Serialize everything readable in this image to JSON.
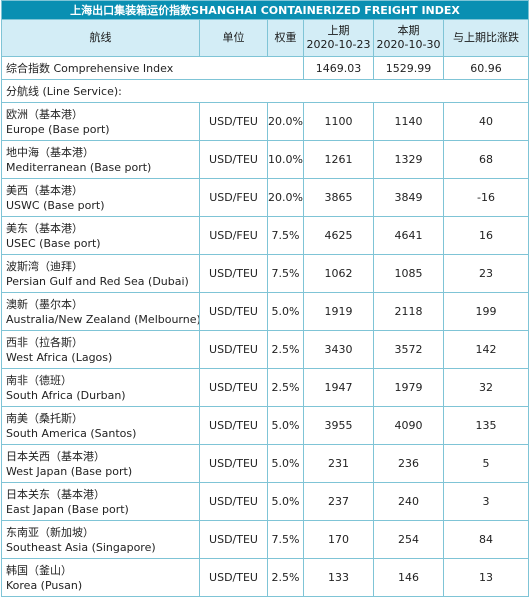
{
  "table": {
    "title": "上海出口集装箱运价指数SHANGHAI CONTAINERIZED FREIGHT INDEX",
    "headers": {
      "route": "航线",
      "unit": "单位",
      "weight": "权重",
      "prev_label": "上期",
      "prev_date": "2020-10-23",
      "curr_label": "本期",
      "curr_date": "2020-10-30",
      "change": "与上期比涨跌"
    },
    "composite": {
      "name": "综合指数 Comprehensive Index",
      "prev": "1469.03",
      "curr": "1529.99",
      "change": "60.96"
    },
    "section_label": "分航线 (Line Service):",
    "rows": [
      {
        "cn": "欧洲（基本港）",
        "en": "Europe (Base port)",
        "unit": "USD/TEU",
        "weight": "20.0%",
        "prev": "1100",
        "curr": "1140",
        "change": "40"
      },
      {
        "cn": "地中海（基本港）",
        "en": "Mediterranean (Base port)",
        "unit": "USD/TEU",
        "weight": "10.0%",
        "prev": "1261",
        "curr": "1329",
        "change": "68"
      },
      {
        "cn": "美西（基本港）",
        "en": "USWC (Base port)",
        "unit": "USD/FEU",
        "weight": "20.0%",
        "prev": "3865",
        "curr": "3849",
        "change": "-16"
      },
      {
        "cn": "美东（基本港）",
        "en": "USEC (Base port)",
        "unit": "USD/FEU",
        "weight": "7.5%",
        "prev": "4625",
        "curr": "4641",
        "change": "16"
      },
      {
        "cn": "波斯湾（迪拜）",
        "en": "Persian Gulf and Red Sea (Dubai)",
        "unit": "USD/TEU",
        "weight": "7.5%",
        "prev": "1062",
        "curr": "1085",
        "change": "23"
      },
      {
        "cn": "澳新（墨尔本）",
        "en": "Australia/New Zealand (Melbourne)",
        "unit": "USD/TEU",
        "weight": "5.0%",
        "prev": "1919",
        "curr": "2118",
        "change": "199"
      },
      {
        "cn": "西非（拉各斯）",
        "en": "West Africa (Lagos)",
        "unit": "USD/TEU",
        "weight": "2.5%",
        "prev": "3430",
        "curr": "3572",
        "change": "142"
      },
      {
        "cn": "南非（德班）",
        "en": "South Africa (Durban)",
        "unit": "USD/TEU",
        "weight": "2.5%",
        "prev": "1947",
        "curr": "1979",
        "change": "32"
      },
      {
        "cn": "南美（桑托斯）",
        "en": "South America (Santos)",
        "unit": "USD/TEU",
        "weight": "5.0%",
        "prev": "3955",
        "curr": "4090",
        "change": "135"
      },
      {
        "cn": "日本关西（基本港）",
        "en": "West Japan (Base port)",
        "unit": "USD/TEU",
        "weight": "5.0%",
        "prev": "231",
        "curr": "236",
        "change": "5"
      },
      {
        "cn": "日本关东（基本港）",
        "en": "East Japan (Base port)",
        "unit": "USD/TEU",
        "weight": "5.0%",
        "prev": "237",
        "curr": "240",
        "change": "3"
      },
      {
        "cn": "东南亚（新加坡）",
        "en": "Southeast Asia (Singapore)",
        "unit": "USD/TEU",
        "weight": "7.5%",
        "prev": "170",
        "curr": "254",
        "change": "84"
      },
      {
        "cn": "韩国（釜山）",
        "en": "Korea (Pusan)",
        "unit": "USD/TEU",
        "weight": "2.5%",
        "prev": "133",
        "curr": "146",
        "change": "13"
      }
    ]
  }
}
